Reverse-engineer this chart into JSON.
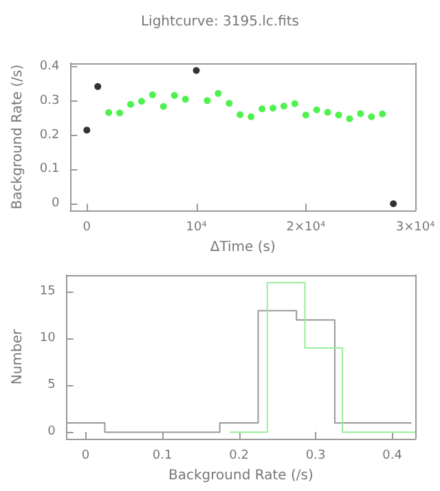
{
  "chart_data": [
    {
      "type": "scatter",
      "title": "Lightcurve: 3195.lc.fits",
      "xlabel": "ΔTime (s)",
      "ylabel": "Background Rate (/s)",
      "marker": "circle",
      "xlim": [
        -1500,
        30000
      ],
      "ylim": [
        -0.02,
        0.41
      ],
      "xticks": [
        0,
        {
          "value": 10000,
          "label": "10⁴"
        },
        {
          "value": 20000,
          "label": "2×10⁴"
        },
        {
          "value": 30000,
          "label": "3×10⁴"
        }
      ],
      "yticks": [
        0,
        0.1,
        0.2,
        0.3,
        0.4
      ],
      "series": [
        {
          "color": "#000000",
          "x": [
            0,
            1000,
            10000,
            28000
          ],
          "values": [
            0.215,
            0.342,
            0.389,
            0
          ]
        },
        {
          "color": "#22ee22",
          "x": [
            2000,
            3000,
            4000,
            5000,
            6000,
            7000,
            8000,
            9000,
            11000,
            12000,
            13000,
            14000,
            15000,
            16000,
            17000,
            18000,
            19000,
            20000,
            21000,
            22000,
            23000,
            24000,
            25000,
            26000,
            27000
          ],
          "values": [
            0.266,
            0.265,
            0.29,
            0.299,
            0.318,
            0.284,
            0.316,
            0.305,
            0.301,
            0.322,
            0.293,
            0.26,
            0.254,
            0.277,
            0.279,
            0.285,
            0.292,
            0.259,
            0.274,
            0.267,
            0.259,
            0.248,
            0.263,
            0.254,
            0.262
          ]
        }
      ]
    },
    {
      "type": "step",
      "xlabel": "Background Rate (/s)",
      "ylabel": "Number",
      "xlim": [
        -0.025,
        0.43
      ],
      "ylim": [
        -0.7,
        16.8
      ],
      "xticks": [
        0,
        0.1,
        0.2,
        0.3,
        0.4
      ],
      "yticks": [
        0,
        5,
        10,
        15
      ],
      "series": [
        {
          "color": "#999999",
          "x": [
            -0.025,
            0.025,
            0.075,
            0.125,
            0.175,
            0.225,
            0.275,
            0.325,
            0.375,
            0.425
          ],
          "values": [
            1,
            0,
            0,
            0,
            1,
            13,
            12,
            1,
            1,
            1
          ]
        },
        {
          "color": "#99ee99",
          "x": [
            0.188,
            0.237,
            0.286,
            0.335,
            0.384,
            0.43
          ],
          "values": [
            0,
            16,
            9,
            0,
            0,
            0
          ]
        }
      ]
    }
  ]
}
